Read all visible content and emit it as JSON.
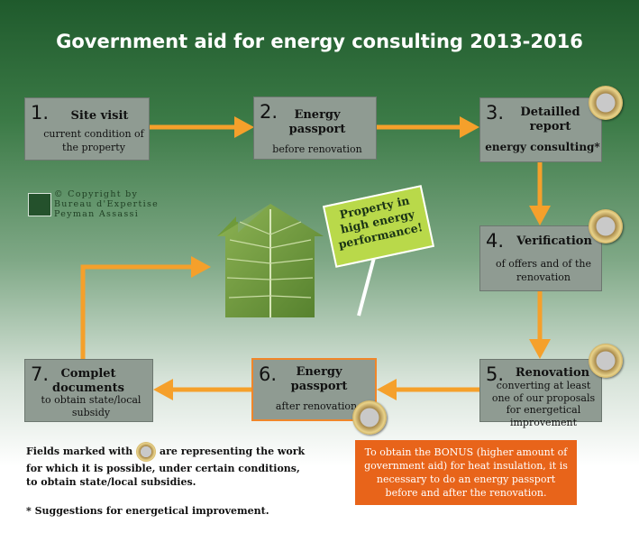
{
  "title": "Government aid for energy consulting 2013-2016",
  "steps": [
    {
      "num": "1.",
      "head": "Site visit",
      "sub": "current condition of the property"
    },
    {
      "num": "2.",
      "head": "Energy passport",
      "sub": "before renovation"
    },
    {
      "num": "3.",
      "head": "Detailled report",
      "sub": "energy consulting*"
    },
    {
      "num": "4.",
      "head": "Verification",
      "sub": "of offers and of the renovation"
    },
    {
      "num": "5.",
      "head": "Renovation",
      "sub": "converting at least one of our proposals for energetical improvement"
    },
    {
      "num": "6.",
      "head": "Energy passport",
      "sub": "after renovation"
    },
    {
      "num": "7.",
      "head": "Complet documents",
      "sub": "to obtain state/local subsidy"
    }
  ],
  "copyright": {
    "line1": "© Copyright by",
    "line2": "Bureau d'Expertise",
    "line3": "Peyman Assassi"
  },
  "sign_text": "Property in high energy performance!",
  "callout": "To obtain the BONUS (higher amount of government aid) for heat insulation, it is necessary to do an energy passport before and after the renovation.",
  "note": {
    "before": "Fields marked with",
    "after": "are representing the work for which it is possible, under certain conditions, to obtain state/local subsidies."
  },
  "footnote": "* Suggestions for energetical improvement.",
  "colors": {
    "arrow": "#f5a02b",
    "box": "#8f9b92",
    "callout": "#e8641a",
    "leaf": "#6f9a3a",
    "sign": "#b9d94a"
  },
  "icons": [
    "euro-coin-icon",
    "house-leaf-icon",
    "bureau-logo-icon"
  ]
}
